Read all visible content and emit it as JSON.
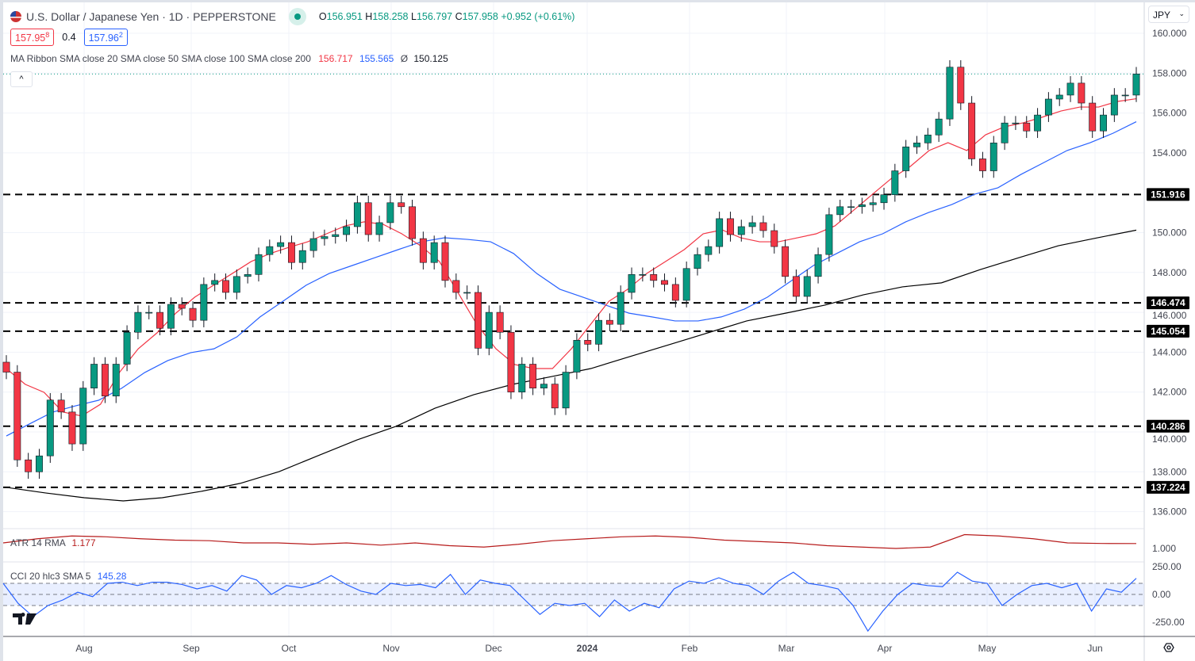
{
  "header": {
    "symbol": "U.S. Dollar / Japanese Yen · 1D · PEPPERSTONE",
    "open": "156.951",
    "high": "158.258",
    "low": "156.797",
    "close": "157.958",
    "change": "+0.952 (+0.61%)",
    "o_label": "O",
    "h_label": "H",
    "l_label": "L",
    "c_label": "C"
  },
  "quote": {
    "bid": "157.95",
    "bid_sup": "8",
    "spread": "0.4",
    "ask": "157.96",
    "ask_sup": "2"
  },
  "ma_ribbon": {
    "label": "MA Ribbon SMA close 20 SMA close 50 SMA close 100 SMA close 200",
    "v1": "156.717",
    "v2": "155.565",
    "v3_prefix": "Ø",
    "v3": "150.125"
  },
  "collapse_label": "^",
  "currency": "JPY",
  "atr": {
    "label": "ATR 14 RMA",
    "value": "1.177"
  },
  "cci": {
    "label": "CCI 20 hlc3 SMA 5",
    "value": "145.28"
  },
  "colors": {
    "up": "#089981",
    "down": "#f23645",
    "sma20": "#f23645",
    "sma50": "#2962ff",
    "sma200": "#000000",
    "atr": "#b71c1c",
    "cci": "#2962ff"
  },
  "chart_data": {
    "type": "candlestick",
    "title": "U.S. Dollar / Japanese Yen · 1D · PEPPERSTONE",
    "ylim": [
      135.5,
      160.8
    ],
    "y_ticks": [
      "160.000",
      "158.000",
      "156.000",
      "154.000",
      "150.000",
      "148.000",
      "146.000",
      "144.000",
      "142.000",
      "140.000",
      "138.000",
      "136.000"
    ],
    "y_tick_values": [
      160,
      158,
      156,
      154,
      150,
      148,
      146,
      144,
      142,
      140,
      138,
      136
    ],
    "x_ticks": [
      "Aug",
      "Sep",
      "Oct",
      "Nov",
      "Dec",
      "2024",
      "Feb",
      "Mar",
      "Apr",
      "May",
      "Jun"
    ],
    "grid": true,
    "close": [
      143.0,
      138.6,
      138.0,
      138.8,
      141.6,
      141.0,
      139.4,
      142.2,
      143.4,
      141.8,
      143.4,
      145.0,
      146.0,
      146.0,
      145.2,
      146.4,
      146.2,
      145.6,
      147.4,
      147.6,
      147.0,
      147.8,
      147.9,
      148.9,
      149.3,
      149.5,
      148.5,
      149.1,
      149.7,
      149.8,
      149.9,
      150.3,
      151.5,
      149.9,
      150.5,
      151.5,
      151.3,
      149.7,
      148.5,
      149.5,
      147.6,
      147.0,
      147.0,
      144.2,
      146.0,
      145.0,
      142.0,
      143.4,
      142.2,
      142.4,
      141.2,
      143.0,
      144.6,
      144.4,
      145.6,
      145.4,
      147.0,
      147.9,
      147.9,
      147.6,
      147.4,
      146.6,
      148.2,
      148.9,
      149.3,
      150.7,
      149.9,
      150.3,
      150.5,
      150.1,
      149.3,
      147.8,
      146.8,
      147.8,
      148.9,
      150.9,
      151.3,
      151.3,
      151.4,
      151.5,
      151.9,
      153.1,
      154.3,
      154.5,
      154.9,
      155.7,
      158.3,
      156.5,
      153.7,
      153.1,
      154.5,
      155.5,
      155.5,
      155.1,
      155.9,
      156.7,
      156.9,
      157.5,
      156.5,
      155.1,
      155.9,
      156.9,
      156.9,
      157.958
    ],
    "sma20": [
      143.18,
      142.39,
      141.99,
      141.0,
      140.8,
      141.39,
      142.98,
      144.17,
      144.97,
      145.96,
      146.76,
      147.36,
      147.95,
      148.55,
      148.95,
      149.26,
      149.54,
      149.94,
      150.34,
      150.54,
      150.42,
      149.94,
      149.34,
      148.55,
      146.96,
      145.37,
      144.17,
      143.38,
      143.18,
      143.18,
      144.17,
      145.37,
      146.56,
      147.16,
      147.95,
      148.55,
      149.15,
      149.94,
      150.14,
      149.74,
      149.54,
      149.54,
      149.74,
      149.94,
      150.34,
      151.13,
      151.93,
      152.72,
      153.32,
      154.12,
      154.51,
      154.12,
      154.91,
      155.31,
      155.51,
      155.79,
      156.1,
      156.3,
      156.3,
      156.58,
      156.717
    ],
    "sma50": [
      139.8,
      140.4,
      140.99,
      141.31,
      141.59,
      142.19,
      142.98,
      143.58,
      143.98,
      144.17,
      144.77,
      145.77,
      146.56,
      147.36,
      147.95,
      148.35,
      148.75,
      149.15,
      149.54,
      149.74,
      149.66,
      149.54,
      148.95,
      147.95,
      147.16,
      146.76,
      146.36,
      145.96,
      145.77,
      145.57,
      145.57,
      145.77,
      146.16,
      146.76,
      147.55,
      148.35,
      148.95,
      149.54,
      149.94,
      150.54,
      151.01,
      151.41,
      151.93,
      152.25,
      152.92,
      153.52,
      154.12,
      154.51,
      154.99,
      155.565
    ],
    "sma200": [
      137.22,
      136.94,
      136.7,
      136.54,
      136.7,
      137.02,
      137.42,
      138.01,
      138.81,
      139.6,
      140.28,
      141.19,
      141.87,
      142.39,
      142.78,
      143.18,
      143.78,
      144.37,
      144.97,
      145.57,
      145.96,
      146.36,
      146.88,
      147.28,
      147.48,
      148.15,
      148.75,
      149.34,
      149.74,
      150.125
    ],
    "levels": [
      {
        "value": 151.916,
        "label": "151.916"
      },
      {
        "value": 146.474,
        "label": "146.474"
      },
      {
        "value": 145.054,
        "label": "145.054"
      },
      {
        "value": 140.286,
        "label": "140.286"
      },
      {
        "value": 137.224,
        "label": "137.224"
      }
    ],
    "last_price": 157.958,
    "atr_series": [
      1.2,
      1.35,
      1.45,
      1.42,
      1.35,
      1.3,
      1.28,
      1.2,
      1.2,
      1.15,
      1.2,
      1.12,
      1.2,
      1.1,
      1.05,
      1.15,
      1.28,
      1.35,
      1.42,
      1.45,
      1.4,
      1.3,
      1.25,
      1.2,
      1.1,
      1.05,
      1.0,
      1.05,
      1.5,
      1.45,
      1.35,
      1.2,
      1.18,
      1.177
    ],
    "atr_ticks": [
      "1.000"
    ],
    "cci_series": [
      100,
      -80,
      -200,
      -100,
      -50,
      20,
      -20,
      100,
      110,
      80,
      110,
      110,
      90,
      50,
      80,
      30,
      170,
      130,
      0,
      80,
      60,
      100,
      170,
      90,
      30,
      0,
      100,
      80,
      90,
      60,
      180,
      0,
      130,
      100,
      80,
      -50,
      -180,
      -80,
      -100,
      -80,
      -200,
      -50,
      -150,
      -80,
      -120,
      50,
      120,
      100,
      150,
      100,
      80,
      0,
      120,
      200,
      100,
      80,
      50,
      -100,
      -330,
      -150,
      0,
      100,
      80,
      70,
      200,
      120,
      100,
      -100,
      0,
      80,
      100,
      60,
      100,
      -150,
      50,
      20,
      145.28
    ],
    "cci_ticks": [
      "250.00",
      "0.00",
      "-250.00"
    ],
    "cci_band": [
      -100,
      100
    ]
  }
}
